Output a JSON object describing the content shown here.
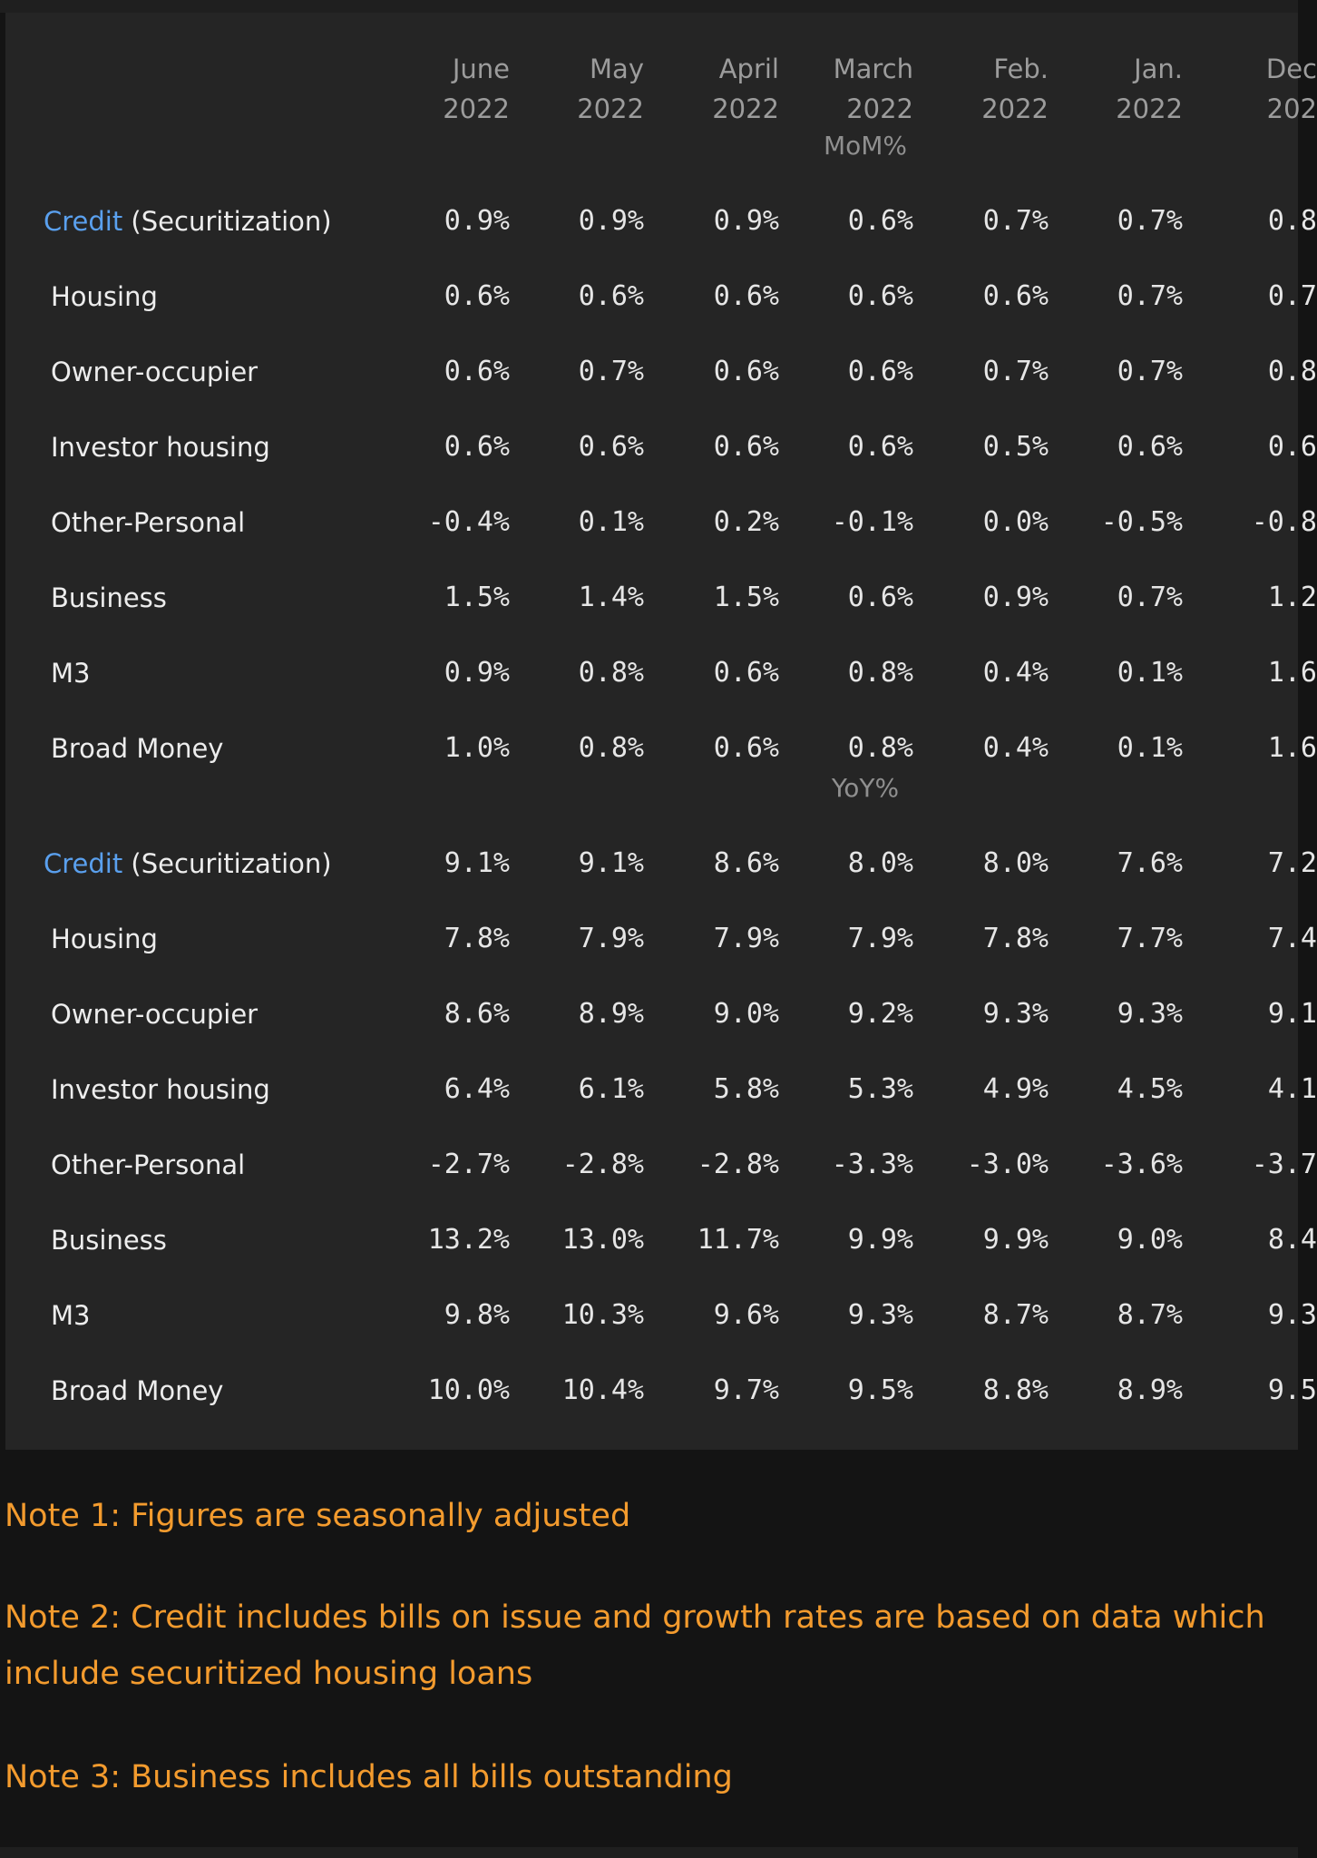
{
  "table": {
    "columns": [
      {
        "month": "June",
        "year": "2022"
      },
      {
        "month": "May",
        "year": "2022"
      },
      {
        "month": "April",
        "year": "2022"
      },
      {
        "month": "March",
        "year": "2022"
      },
      {
        "month": "Feb.",
        "year": "2022"
      },
      {
        "month": "Jan.",
        "year": "2022"
      },
      {
        "month": "Dec",
        "year": "202"
      }
    ],
    "sections": [
      {
        "label": "MoM%",
        "rows": [
          {
            "prefix": "Credit",
            "label": " (Securitization)",
            "values": [
              "0.9%",
              "0.9%",
              "0.9%",
              "0.6%",
              "0.7%",
              "0.7%",
              "0.8"
            ]
          },
          {
            "prefix": "",
            "label": "Housing",
            "values": [
              "0.6%",
              "0.6%",
              "0.6%",
              "0.6%",
              "0.6%",
              "0.7%",
              "0.7"
            ]
          },
          {
            "prefix": "",
            "label": "Owner-occupier",
            "values": [
              "0.6%",
              "0.7%",
              "0.6%",
              "0.6%",
              "0.7%",
              "0.7%",
              "0.8"
            ]
          },
          {
            "prefix": "",
            "label": "Investor housing",
            "values": [
              "0.6%",
              "0.6%",
              "0.6%",
              "0.6%",
              "0.5%",
              "0.6%",
              "0.6"
            ]
          },
          {
            "prefix": "",
            "label": "Other-Personal",
            "values": [
              "-0.4%",
              "0.1%",
              "0.2%",
              "-0.1%",
              "0.0%",
              "-0.5%",
              "-0.8"
            ]
          },
          {
            "prefix": "",
            "label": "Business",
            "values": [
              "1.5%",
              "1.4%",
              "1.5%",
              "0.6%",
              "0.9%",
              "0.7%",
              "1.2"
            ]
          },
          {
            "prefix": "",
            "label": "M3",
            "values": [
              "0.9%",
              "0.8%",
              "0.6%",
              "0.8%",
              "0.4%",
              "0.1%",
              "1.6"
            ]
          },
          {
            "prefix": "",
            "label": "Broad Money",
            "values": [
              "1.0%",
              "0.8%",
              "0.6%",
              "0.8%",
              "0.4%",
              "0.1%",
              "1.6"
            ]
          }
        ]
      },
      {
        "label": "YoY%",
        "rows": [
          {
            "prefix": "Credit",
            "label": " (Securitization)",
            "values": [
              "9.1%",
              "9.1%",
              "8.6%",
              "8.0%",
              "8.0%",
              "7.6%",
              "7.2"
            ]
          },
          {
            "prefix": "",
            "label": "Housing",
            "values": [
              "7.8%",
              "7.9%",
              "7.9%",
              "7.9%",
              "7.8%",
              "7.7%",
              "7.4"
            ]
          },
          {
            "prefix": "",
            "label": "Owner-occupier",
            "values": [
              "8.6%",
              "8.9%",
              "9.0%",
              "9.2%",
              "9.3%",
              "9.3%",
              "9.1"
            ]
          },
          {
            "prefix": "",
            "label": "Investor housing",
            "values": [
              "6.4%",
              "6.1%",
              "5.8%",
              "5.3%",
              "4.9%",
              "4.5%",
              "4.1"
            ]
          },
          {
            "prefix": "",
            "label": "Other-Personal",
            "values": [
              "-2.7%",
              "-2.8%",
              "-2.8%",
              "-3.3%",
              "-3.0%",
              "-3.6%",
              "-3.7"
            ]
          },
          {
            "prefix": "",
            "label": "Business",
            "values": [
              "13.2%",
              "13.0%",
              "11.7%",
              "9.9%",
              "9.9%",
              "9.0%",
              "8.4"
            ]
          },
          {
            "prefix": "",
            "label": "M3",
            "values": [
              "9.8%",
              "10.3%",
              "9.6%",
              "9.3%",
              "8.7%",
              "8.7%",
              "9.3"
            ]
          },
          {
            "prefix": "",
            "label": "Broad Money",
            "values": [
              "10.0%",
              "10.4%",
              "9.7%",
              "9.5%",
              "8.8%",
              "8.9%",
              "9.5"
            ]
          }
        ]
      }
    ]
  },
  "notes": [
    "Note 1: Figures are seasonally adjusted",
    "Note 2: Credit includes bills on issue and growth rates are based on data which",
    "include securitized housing loans",
    "Note 3: Business includes all bills outstanding"
  ],
  "colors": {
    "background": "#141414",
    "panel": "#252525",
    "text": "#e6e6e6",
    "header": "#9c9c9c",
    "credit_accent": "#5aa0ee",
    "notes": "#f39b2e"
  }
}
